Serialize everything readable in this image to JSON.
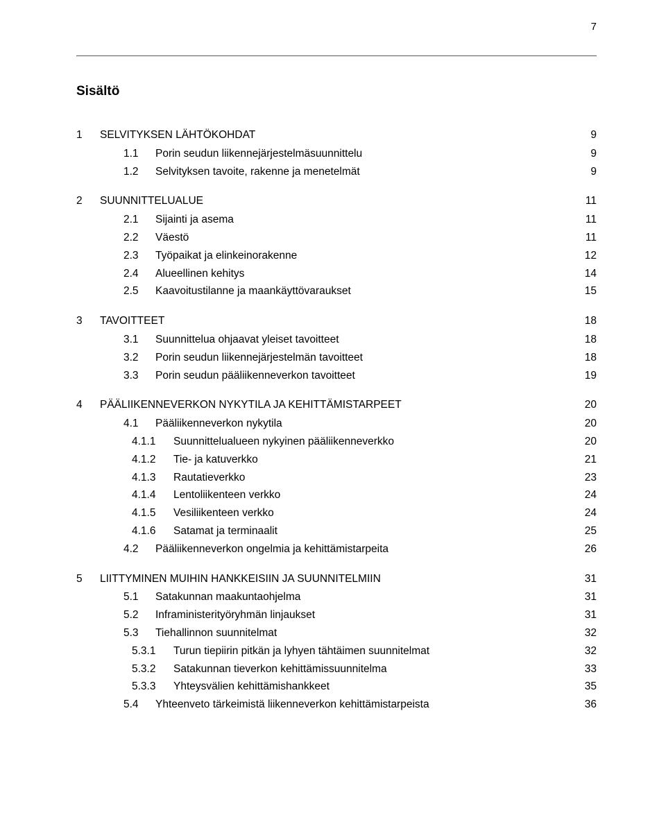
{
  "page_number": "7",
  "title": "Sisältö",
  "toc": [
    {
      "level": 1,
      "num": "1",
      "label": "SELVITYKSEN LÄHTÖKOHDAT",
      "page": "9"
    },
    {
      "level": 2,
      "num": "1.1",
      "label": "Porin seudun liikennejärjestelmäsuunnittelu",
      "page": "9"
    },
    {
      "level": 2,
      "num": "1.2",
      "label": "Selvityksen tavoite, rakenne ja menetelmät",
      "page": "9"
    },
    {
      "level": 1,
      "num": "2",
      "label": "SUUNNITTELUALUE",
      "page": "11"
    },
    {
      "level": 2,
      "num": "2.1",
      "label": "Sijainti ja asema",
      "page": "11"
    },
    {
      "level": 2,
      "num": "2.2",
      "label": "Väestö",
      "page": "11"
    },
    {
      "level": 2,
      "num": "2.3",
      "label": "Työpaikat ja elinkeinorakenne",
      "page": "12"
    },
    {
      "level": 2,
      "num": "2.4",
      "label": "Alueellinen kehitys",
      "page": "14"
    },
    {
      "level": 2,
      "num": "2.5",
      "label": "Kaavoitustilanne ja maankäyttövaraukset",
      "page": "15"
    },
    {
      "level": 1,
      "num": "3",
      "label": "TAVOITTEET",
      "page": "18"
    },
    {
      "level": 2,
      "num": "3.1",
      "label": "Suunnittelua ohjaavat yleiset tavoitteet",
      "page": "18"
    },
    {
      "level": 2,
      "num": "3.2",
      "label": "Porin seudun liikennejärjestelmän tavoitteet",
      "page": "18"
    },
    {
      "level": 2,
      "num": "3.3",
      "label": "Porin seudun pääliikenneverkon tavoitteet",
      "page": "19"
    },
    {
      "level": 1,
      "num": "4",
      "label": "PÄÄLIIKENNEVERKON NYKYTILA JA KEHITTÄMISTARPEET",
      "page": "20"
    },
    {
      "level": 2,
      "num": "4.1",
      "label": "Pääliikenneverkon nykytila",
      "page": "20"
    },
    {
      "level": 3,
      "num": "4.1.1",
      "label": "Suunnittelualueen nykyinen pääliikenneverkko",
      "page": "20"
    },
    {
      "level": 3,
      "num": "4.1.2",
      "label": "Tie- ja katuverkko",
      "page": "21"
    },
    {
      "level": 3,
      "num": "4.1.3",
      "label": "Rautatieverkko",
      "page": "23"
    },
    {
      "level": 3,
      "num": "4.1.4",
      "label": "Lentoliikenteen verkko",
      "page": "24"
    },
    {
      "level": 3,
      "num": "4.1.5",
      "label": "Vesiliikenteen verkko",
      "page": "24"
    },
    {
      "level": 3,
      "num": "4.1.6",
      "label": "Satamat ja terminaalit",
      "page": "25"
    },
    {
      "level": 2,
      "num": "4.2",
      "label": "Pääliikenneverkon ongelmia ja kehittämistarpeita",
      "page": "26"
    },
    {
      "level": 1,
      "num": "5",
      "label": "LIITTYMINEN MUIHIN HANKKEISIIN JA SUUNNITELMIIN",
      "page": "31"
    },
    {
      "level": 2,
      "num": "5.1",
      "label": "Satakunnan maakuntaohjelma",
      "page": "31"
    },
    {
      "level": 2,
      "num": "5.2",
      "label": "Infraministerityöryhmän linjaukset",
      "page": "31"
    },
    {
      "level": 2,
      "num": "5.3",
      "label": "Tiehallinnon suunnitelmat",
      "page": "32"
    },
    {
      "level": 3,
      "num": "5.3.1",
      "label": "Turun tiepiirin pitkän ja lyhyen tähtäimen suunnitelmat",
      "page": "32"
    },
    {
      "level": 3,
      "num": "5.3.2",
      "label": "Satakunnan tieverkon kehittämissuunnitelma",
      "page": "33"
    },
    {
      "level": 3,
      "num": "5.3.3",
      "label": "Yhteysvälien kehittämishankkeet",
      "page": "35"
    },
    {
      "level": 2,
      "num": "5.4",
      "label": "Yhteenveto tärkeimistä liikenneverkon kehittämistarpeista",
      "page": "36"
    }
  ]
}
